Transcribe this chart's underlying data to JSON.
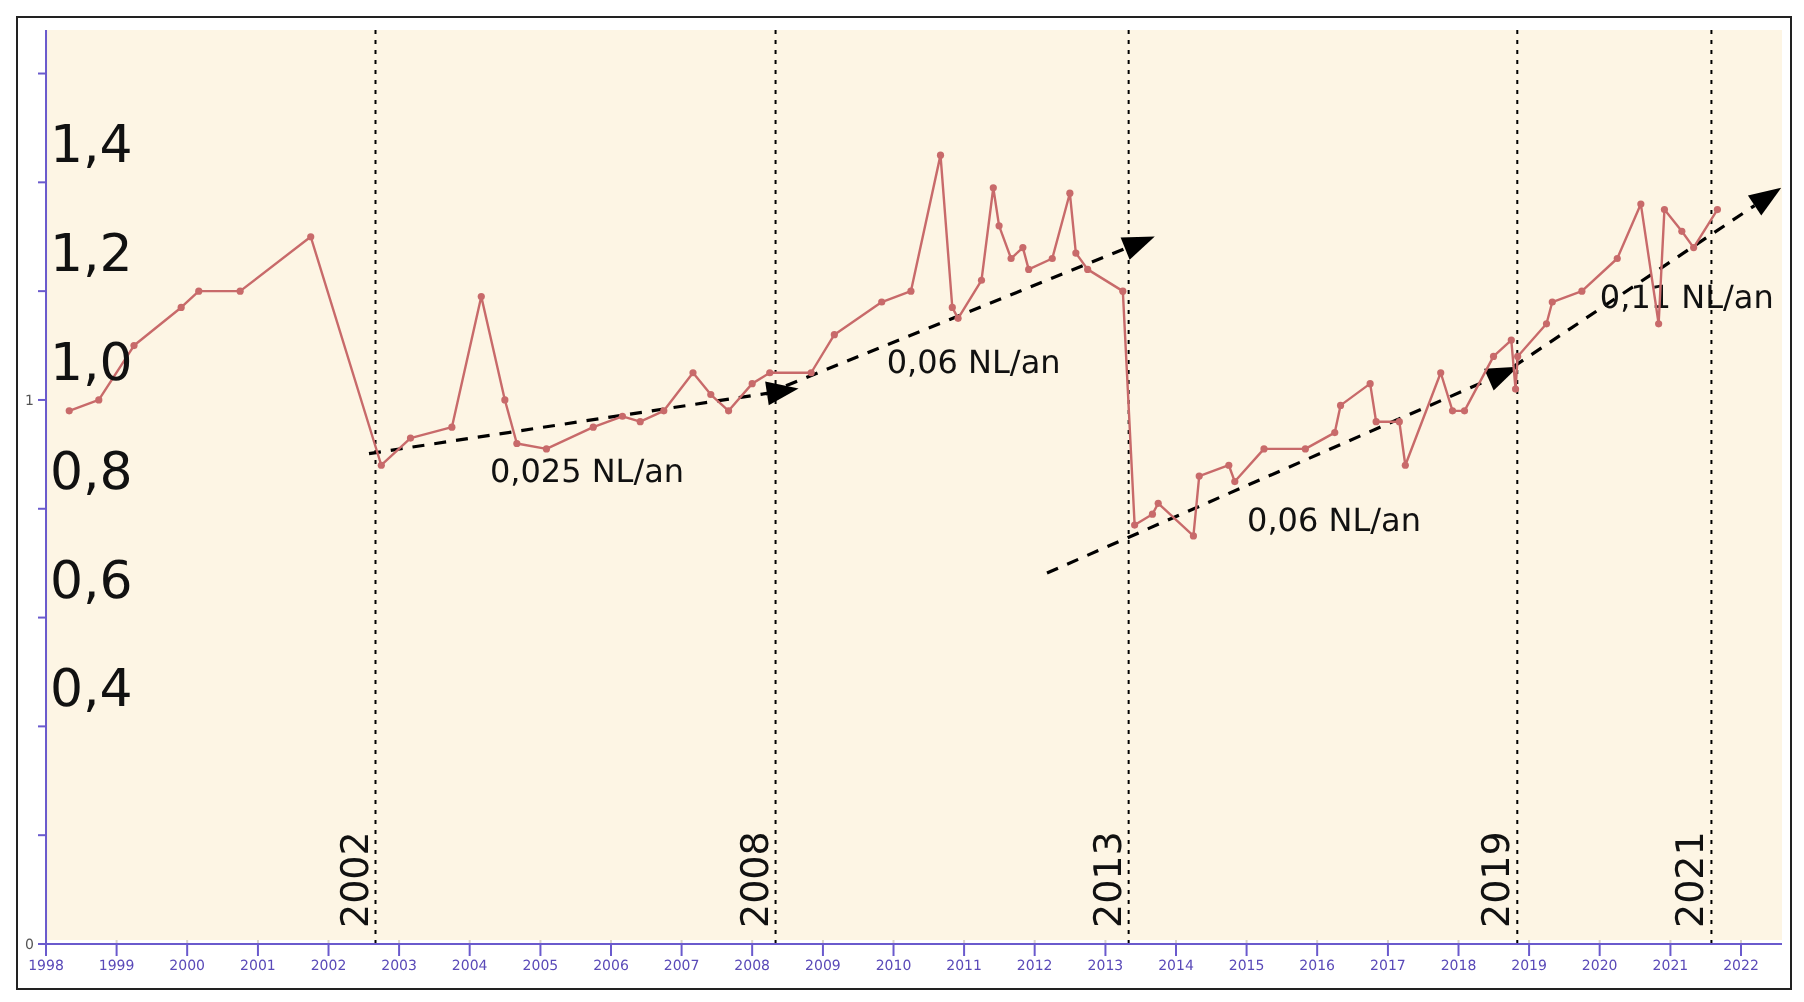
{
  "chart_data": {
    "type": "line",
    "xlim": [
      "1998-01-01",
      "2022-08-01"
    ],
    "xticks": [
      "1998",
      "1999",
      "2000",
      "2001",
      "2002",
      "2003",
      "2004",
      "2005",
      "2006",
      "2007",
      "2008",
      "2009",
      "2010",
      "2011",
      "2012",
      "2013",
      "2014",
      "2015",
      "2016",
      "2017",
      "2018",
      "2019",
      "2020",
      "2021",
      "2022"
    ],
    "ylim": [
      0,
      1.68
    ],
    "yticks": [
      0,
      {
        "value": 0.2,
        "label": null
      },
      {
        "value": 0.4,
        "label": null
      },
      {
        "value": 0.6,
        "label": null
      },
      {
        "value": 0.8,
        "label": null
      },
      1,
      {
        "value": 1.2,
        "label": null
      },
      {
        "value": 1.4,
        "label": null
      },
      {
        "value": 1.6,
        "label": null
      }
    ],
    "y2lim": [
      0,
      1.68
    ],
    "y2ticks": [
      {
        "value": 0.4,
        "label": "0,4"
      },
      {
        "value": 0.6,
        "label": "0,6"
      },
      {
        "value": 0.8,
        "label": "0,8"
      },
      {
        "value": 1,
        "label": "1,0"
      },
      {
        "value": 1.2,
        "label": "1,2"
      },
      {
        "value": 1.4,
        "label": "1,4"
      }
    ],
    "grid": true,
    "series": [
      {
        "color": "#c86a6a",
        "marker": "circle",
        "line_style": "solid",
        "x": [
          "1998-05",
          "1998-10",
          "1999-04",
          "1999-12",
          "2000-03",
          "2000-10",
          "2001-10",
          "2002-10",
          "2003-03",
          "2003-10",
          "2004-03",
          "2004-07",
          "2004-09",
          "2005-02",
          "2005-10",
          "2006-03",
          "2006-06",
          "2006-10",
          "2007-03",
          "2007-06",
          "2007-09",
          "2008-01",
          "2008-04",
          "2008-11",
          "2009-03",
          "2009-11",
          "2010-04",
          "2010-09",
          "2010-11",
          "2010-12",
          "2011-04",
          "2011-06",
          "2011-07",
          "2011-09",
          "2011-11",
          "2011-12",
          "2012-04",
          "2012-07",
          "2012-08",
          "2012-10",
          "2013-04",
          "2013-06",
          "2013-09",
          "2013-10",
          "2014-04",
          "2014-05",
          "2014-10",
          "2014-11",
          "2015-04",
          "2015-11",
          "2016-04",
          "2016-05",
          "2016-10",
          "2016-11",
          "2017-03",
          "2017-04",
          "2017-10",
          "2017-12",
          "2018-02",
          "2018-07",
          "2018-10",
          "2018-10-23",
          "2018-11-03",
          "2019-04",
          "2019-05",
          "2019-10",
          "2020-04",
          "2020-08",
          "2020-11",
          "2020-12",
          "2021-03",
          "2021-05",
          "2021-09"
        ],
        "values": [
          0.98,
          1.0,
          1.1,
          1.17,
          1.2,
          1.2,
          1.3,
          0.88,
          0.93,
          0.95,
          1.19,
          1.0,
          0.92,
          0.91,
          0.95,
          0.97,
          0.96,
          0.98,
          1.05,
          1.01,
          0.98,
          1.03,
          1.05,
          1.05,
          1.12,
          1.18,
          1.2,
          1.45,
          1.17,
          1.15,
          1.22,
          1.39,
          1.32,
          1.26,
          1.28,
          1.24,
          1.26,
          1.38,
          1.27,
          1.24,
          1.2,
          0.77,
          0.79,
          0.81,
          0.75,
          0.86,
          0.88,
          0.85,
          0.91,
          0.91,
          0.94,
          0.99,
          1.03,
          0.96,
          0.96,
          0.88,
          1.05,
          0.98,
          0.98,
          1.08,
          1.11,
          1.02,
          1.08,
          1.14,
          1.18,
          1.2,
          1.26,
          1.36,
          1.14,
          1.35,
          1.31,
          1.28,
          1.35
        ]
      }
    ],
    "ref_lines": [
      {
        "axis": "x",
        "value": "2002-09",
        "label": "2002",
        "color": "#000000",
        "line_style": "dotted"
      },
      {
        "axis": "x",
        "value": "2008-05",
        "label": "2008",
        "color": "#000000",
        "line_style": "dotted"
      },
      {
        "axis": "x",
        "value": "2013-05",
        "label": "2013",
        "color": "#000000",
        "line_style": "dotted"
      },
      {
        "axis": "x",
        "value": "2018-11",
        "label": "2019",
        "color": "#000000",
        "line_style": "dotted"
      },
      {
        "axis": "x",
        "value": "2021-08",
        "label": "2021",
        "color": "#000000",
        "line_style": "dotted"
      }
    ],
    "annotations": [
      "0,025 NL/an",
      "0,06 NL/an",
      "0,06 NL/an",
      "0,11 NL/an"
    ]
  }
}
